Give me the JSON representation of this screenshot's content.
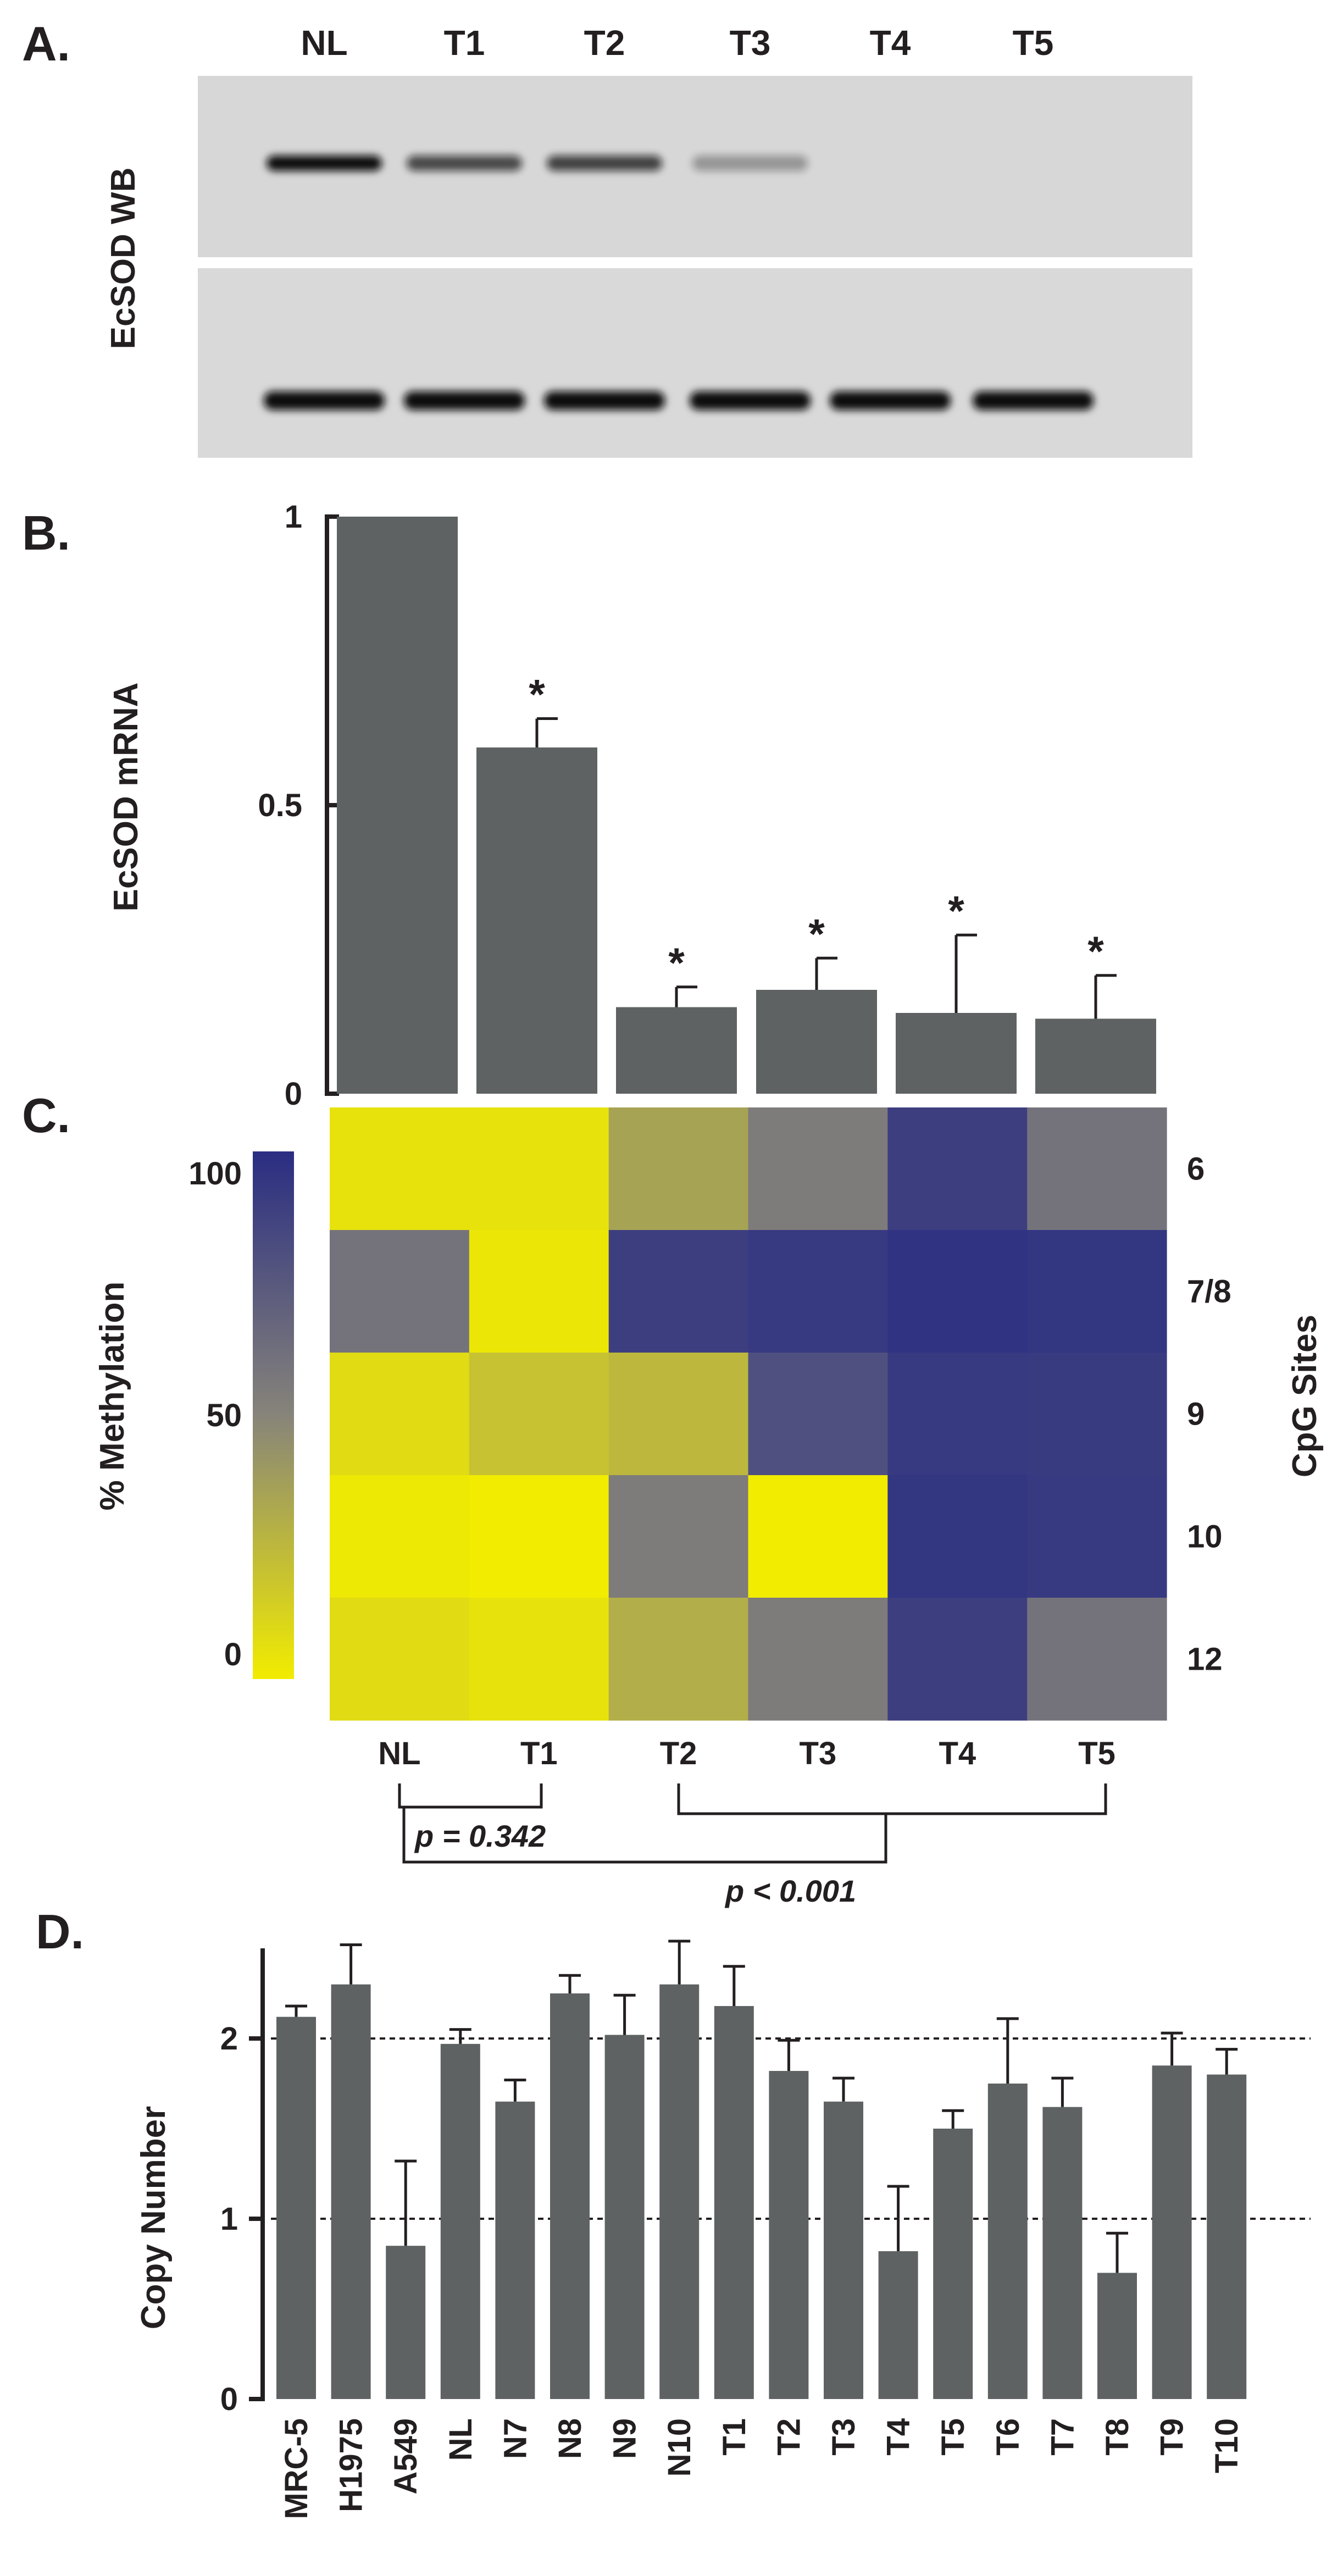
{
  "panels": {
    "A": {
      "label": "A.",
      "lanes": [
        "NL",
        "T1",
        "T2",
        "T3",
        "T4",
        "T5"
      ],
      "ylabel": "EcSOD WB",
      "ecsod_band_intensity": [
        1.0,
        0.65,
        0.7,
        0.2,
        0.0,
        0.0
      ],
      "loading_band_intensity": [
        1.0,
        1.0,
        1.0,
        1.0,
        1.0,
        1.0
      ]
    },
    "B": {
      "label": "B."
    },
    "C": {
      "label": "C."
    },
    "D": {
      "label": "D."
    }
  },
  "colors": {
    "bar": "#5e6263",
    "text": "#231f20",
    "heat_low": "#f2ec00",
    "heat_mid": "#87847a",
    "heat_high": "#2a2d82"
  },
  "chart_data": [
    {
      "panel": "B",
      "type": "bar",
      "categories": [
        "NL",
        "T1",
        "T2",
        "T3",
        "T4",
        "T5"
      ],
      "values": [
        1.0,
        0.6,
        0.15,
        0.18,
        0.14,
        0.13
      ],
      "errors": [
        0.0,
        0.05,
        0.035,
        0.055,
        0.135,
        0.075
      ],
      "significance": [
        "",
        "*",
        "*",
        "*",
        "*",
        "*"
      ],
      "ylabel": "EcSOD mRNA",
      "yticks": [
        "0",
        "0.5",
        "1"
      ],
      "ylim": [
        0,
        1
      ]
    },
    {
      "panel": "C",
      "type": "heatmap",
      "x": [
        "NL",
        "T1",
        "T2",
        "T3",
        "T4",
        "T5"
      ],
      "y": [
        "6",
        "7/8",
        "9",
        "10",
        "12"
      ],
      "values": [
        [
          5,
          5,
          35,
          55,
          90,
          60
        ],
        [
          60,
          3,
          90,
          93,
          97,
          95
        ],
        [
          8,
          20,
          25,
          80,
          93,
          92
        ],
        [
          2,
          0,
          55,
          0,
          95,
          93
        ],
        [
          8,
          5,
          30,
          55,
          90,
          60
        ]
      ],
      "ylabel": "CpG Sites",
      "colorbar_label": "% Methylation",
      "colorbar_ticks": [
        "0",
        "50",
        "100"
      ],
      "colorbar_range": [
        0,
        100
      ],
      "comparisons": [
        {
          "groups": [
            "NL",
            "T1"
          ],
          "text": "p = 0.342"
        },
        {
          "groups": [
            "NL",
            "T2-T5"
          ],
          "text": "p < 0.001"
        }
      ]
    },
    {
      "panel": "D",
      "type": "bar",
      "categories": [
        "MRC-5",
        "H1975",
        "A549",
        "NL",
        "N7",
        "N8",
        "N9",
        "N10",
        "T1",
        "T2",
        "T3",
        "T4",
        "T5",
        "T6",
        "T7",
        "T8",
        "T9",
        "T10"
      ],
      "values": [
        2.12,
        2.3,
        0.85,
        1.97,
        1.65,
        2.25,
        2.02,
        2.3,
        2.18,
        1.82,
        1.65,
        0.82,
        1.5,
        1.75,
        1.62,
        0.7,
        1.85,
        1.8
      ],
      "errors": [
        0.06,
        0.22,
        0.47,
        0.08,
        0.12,
        0.1,
        0.22,
        0.24,
        0.22,
        0.17,
        0.13,
        0.36,
        0.1,
        0.36,
        0.16,
        0.22,
        0.18,
        0.14
      ],
      "ylabel": "Copy Number",
      "yticks": [
        "0",
        "1",
        "2"
      ],
      "ylim": [
        0,
        2.5
      ],
      "reference_lines": [
        1,
        2
      ]
    }
  ]
}
